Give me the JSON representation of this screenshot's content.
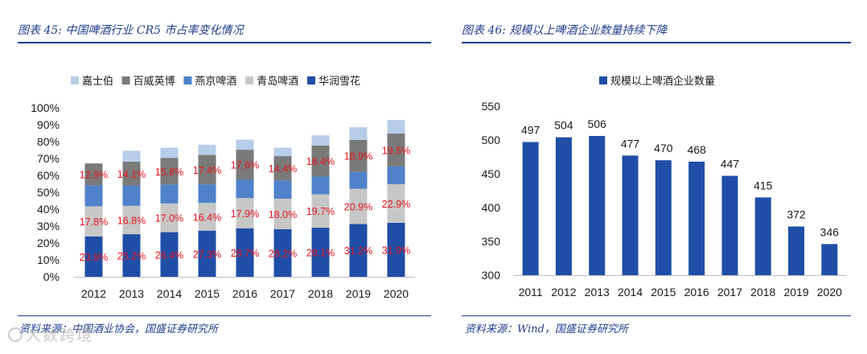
{
  "left_panel": {
    "title": "图表 45:  中国啤酒行业 CR5 市占率变化情况",
    "source": "资料来源：中国酒业协会，国盛证券研究所"
  },
  "right_panel": {
    "title": "图表 46:  规模以上啤酒企业数量持续下降",
    "source": "资料来源：Wind，国盛证券研究所"
  },
  "watermark": "大数跨境",
  "colors": {
    "header": "#1f3d8a",
    "label_red": "#e8141c",
    "huarun": "#1f4ea6",
    "qingdao": "#c7c7c7",
    "yanjing": "#4f82c9",
    "baiwei": "#7a7a7a",
    "jiashibo": "#b7cde8",
    "bar_right": "#1f4ea6"
  },
  "chart_data": [
    {
      "type": "bar",
      "stacked": true,
      "categories": [
        "2012",
        "2013",
        "2014",
        "2015",
        "2016",
        "2017",
        "2018",
        "2019",
        "2020"
      ],
      "ylim": [
        0,
        100
      ],
      "yticks": [
        "0%",
        "10%",
        "20%",
        "30%",
        "40%",
        "50%",
        "60%",
        "70%",
        "80%",
        "90%",
        "100%"
      ],
      "legend": [
        "嘉士伯",
        "百威英博",
        "燕京啤酒",
        "青岛啤酒",
        "华润雪花"
      ],
      "series": [
        {
          "name": "华润雪花",
          "key": "huarun",
          "values": [
            23.9,
            25.2,
            26.4,
            27.3,
            28.7,
            28.2,
            29.1,
            31.2,
            31.9
          ],
          "labels": [
            "23.9%",
            "25.2%",
            "26.4%",
            "27.3%",
            "28.7%",
            "28.2%",
            "29.1%",
            "31.2%",
            "31.9%"
          ]
        },
        {
          "name": "青岛啤酒",
          "key": "qingdao",
          "values": [
            17.8,
            16.8,
            17.0,
            16.4,
            17.9,
            18.0,
            19.7,
            20.9,
            22.9
          ],
          "labels": [
            "17.8%",
            "16.8%",
            "17.0%",
            "16.4%",
            "17.9%",
            "18.0%",
            "19.7%",
            "20.9%",
            "22.9%"
          ]
        },
        {
          "name": "燕京啤酒",
          "key": "yanjing",
          "values": [
            12.5,
            12.0,
            11.2,
            11.0,
            11.0,
            10.8,
            10.5,
            10.0,
            10.5
          ]
        },
        {
          "name": "百威英博",
          "key": "baiwei",
          "values": [
            12.9,
            14.1,
            15.8,
            17.4,
            17.6,
            14.4,
            18.4,
            18.9,
            19.5
          ],
          "labels": [
            "12.9%",
            "14.1%",
            "15.8%",
            "17.4%",
            "17.6%",
            "14.4%",
            "18.4%",
            "18.9%",
            "19.5%"
          ]
        },
        {
          "name": "嘉士伯",
          "key": "jiashibo",
          "values": [
            0,
            6.5,
            6.0,
            6.0,
            6.0,
            5.0,
            6.0,
            7.5,
            8.0
          ]
        }
      ]
    },
    {
      "type": "bar",
      "categories": [
        "2011",
        "2012",
        "2013",
        "2014",
        "2015",
        "2016",
        "2017",
        "2018",
        "2019",
        "2020"
      ],
      "ylim": [
        300,
        550
      ],
      "yticks": [
        "300",
        "350",
        "400",
        "450",
        "500",
        "550"
      ],
      "legend": [
        "规模以上啤酒企业数量"
      ],
      "series": [
        {
          "name": "规模以上啤酒企业数量",
          "values": [
            497,
            504,
            506,
            477,
            470,
            468,
            447,
            415,
            372,
            346
          ],
          "labels": [
            "497",
            "504",
            "506",
            "477",
            "470",
            "468",
            "447",
            "415",
            "372",
            "346"
          ]
        }
      ]
    }
  ]
}
